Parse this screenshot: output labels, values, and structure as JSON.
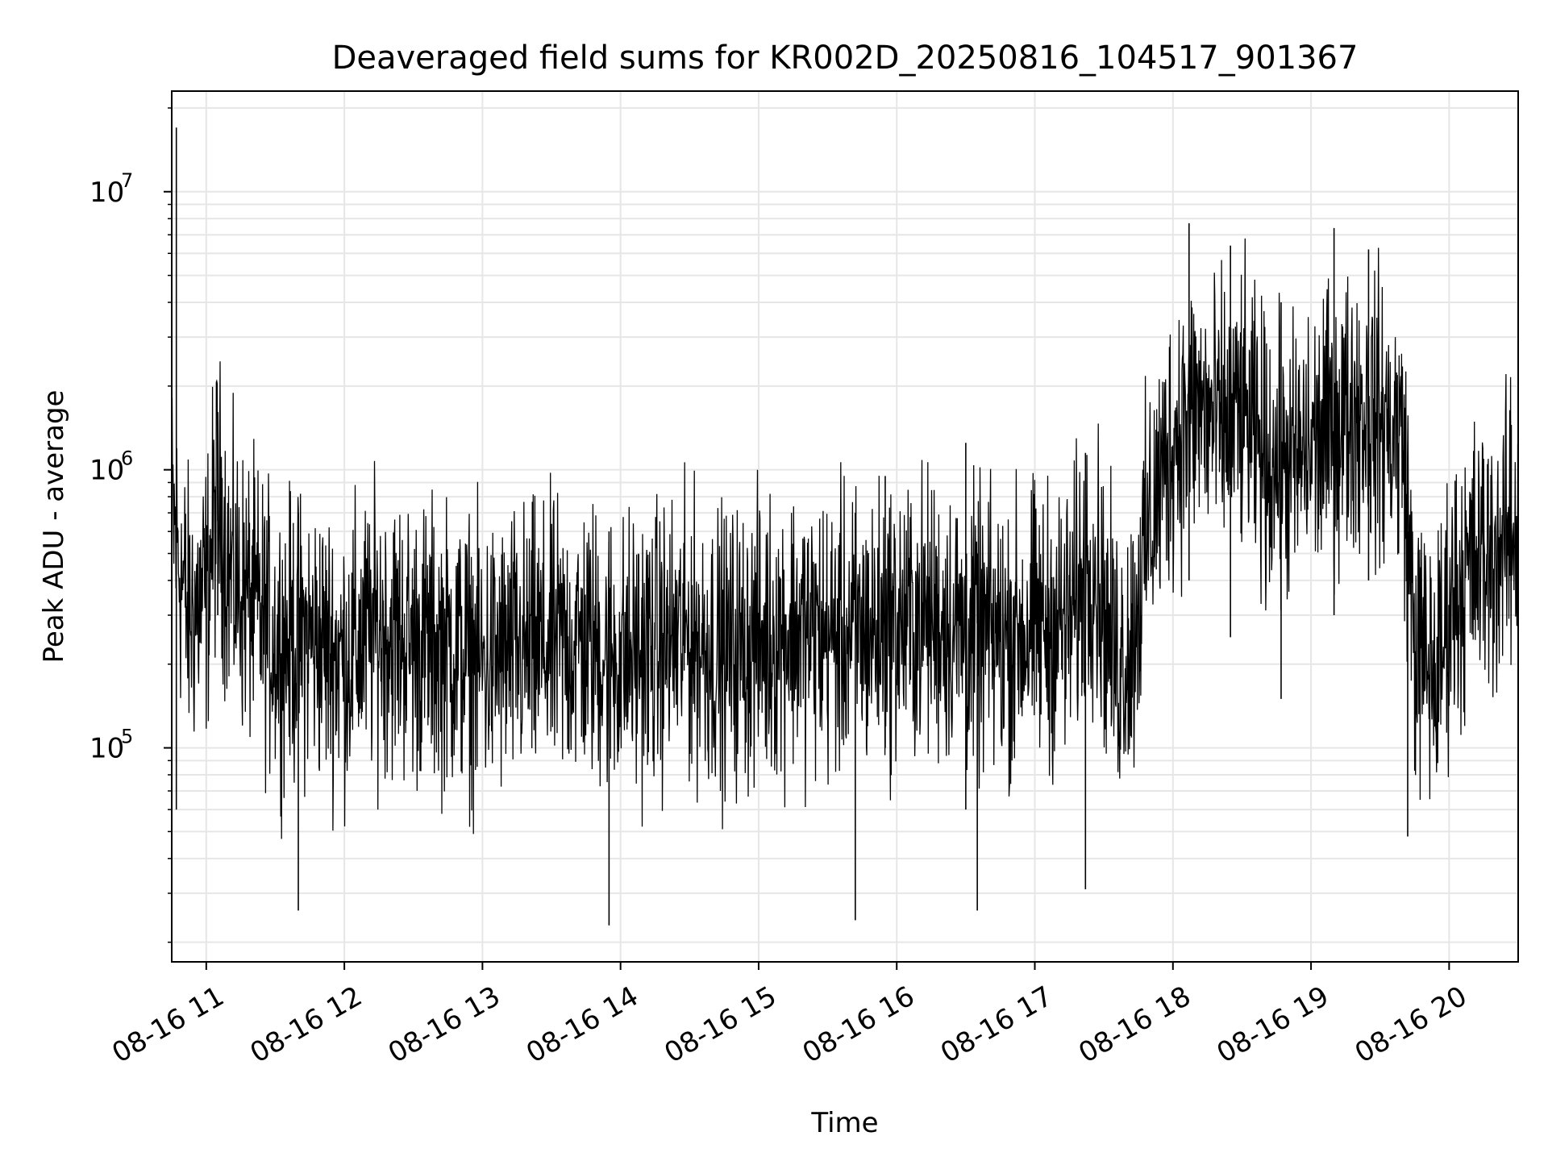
{
  "chart_data": {
    "type": "line",
    "title": "Deaveraged field sums for KR002D_20250816_104517_901367",
    "xlabel": "Time",
    "ylabel": "Peak ADU - average",
    "y_scale": "log",
    "ylim": [
      17000,
      23000000
    ],
    "xlim": [
      "08-16 10:45",
      "08-16 20:30"
    ],
    "grid": true,
    "legend": "none",
    "line_color": "#000000",
    "grid_color": "#e6e6e6",
    "x_ticks": [
      {
        "time": "08-16 11:00",
        "label": "08-16 11"
      },
      {
        "time": "08-16 12:00",
        "label": "08-16 12"
      },
      {
        "time": "08-16 13:00",
        "label": "08-16 13"
      },
      {
        "time": "08-16 14:00",
        "label": "08-16 14"
      },
      {
        "time": "08-16 15:00",
        "label": "08-16 15"
      },
      {
        "time": "08-16 16:00",
        "label": "08-16 16"
      },
      {
        "time": "08-16 17:00",
        "label": "08-16 17"
      },
      {
        "time": "08-16 18:00",
        "label": "08-16 18"
      },
      {
        "time": "08-16 19:00",
        "label": "08-16 19"
      },
      {
        "time": "08-16 20:00",
        "label": "08-16 20"
      }
    ],
    "y_ticks": [
      {
        "value": 100000,
        "base": "10",
        "exp": "5"
      },
      {
        "value": 1000000,
        "base": "10",
        "exp": "6"
      },
      {
        "value": 10000000,
        "base": "10",
        "exp": "7"
      }
    ],
    "series": [
      {
        "x": [
          "08-16 10:45",
          "08-16 10:52",
          "08-16 11:00",
          "08-16 11:05",
          "08-16 11:10",
          "08-16 11:20",
          "08-16 11:30",
          "08-16 11:45",
          "08-16 12:00",
          "08-16 12:15",
          "08-16 12:30",
          "08-16 12:45",
          "08-16 13:00",
          "08-16 13:15",
          "08-16 13:30",
          "08-16 13:45",
          "08-16 14:00",
          "08-16 14:15",
          "08-16 14:30",
          "08-16 14:45",
          "08-16 15:00",
          "08-16 15:15",
          "08-16 15:30",
          "08-16 15:45",
          "08-16 16:00",
          "08-16 16:15",
          "08-16 16:30",
          "08-16 16:45",
          "08-16 17:00",
          "08-16 17:15",
          "08-16 17:25",
          "08-16 17:35",
          "08-16 17:42",
          "08-16 17:50",
          "08-16 18:00",
          "08-16 18:10",
          "08-16 18:20",
          "08-16 18:30",
          "08-16 18:40",
          "08-16 18:50",
          "08-16 19:00",
          "08-16 19:10",
          "08-16 19:20",
          "08-16 19:30",
          "08-16 19:40",
          "08-16 19:45",
          "08-16 19:50",
          "08-16 19:55",
          "08-16 20:00",
          "08-16 20:10",
          "08-16 20:20",
          "08-16 20:30"
        ],
        "values": [
          700000,
          300000,
          350000,
          850000,
          420000,
          330000,
          240000,
          250000,
          210000,
          270000,
          240000,
          230000,
          200000,
          220000,
          230000,
          240000,
          210000,
          230000,
          250000,
          220000,
          240000,
          270000,
          250000,
          260000,
          280000,
          300000,
          260000,
          250000,
          270000,
          280000,
          500000,
          200000,
          240000,
          650000,
          1300000,
          1700000,
          1400000,
          1600000,
          1100000,
          1000000,
          1200000,
          1400000,
          1700000,
          1500000,
          1300000,
          240000,
          200000,
          180000,
          330000,
          450000,
          500000,
          600000
        ],
        "spikes": [
          {
            "x": "08-16 10:47",
            "low": 60000,
            "high": 17000000
          },
          {
            "x": "08-16 11:05",
            "low": 300000,
            "high": 1250000
          },
          {
            "x": "08-16 11:40",
            "low": 26000,
            "high": 700000
          },
          {
            "x": "08-16 13:55",
            "low": 23000,
            "high": 600000
          },
          {
            "x": "08-16 15:42",
            "low": 24000,
            "high": 700000
          },
          {
            "x": "08-16 15:55",
            "low": 100000,
            "high": 950000
          },
          {
            "x": "08-16 16:30",
            "low": 60000,
            "high": 1250000
          },
          {
            "x": "08-16 16:35",
            "low": 26000,
            "high": 500000
          },
          {
            "x": "08-16 17:22",
            "low": 31000,
            "high": 1150000
          },
          {
            "x": "08-16 18:07",
            "low": 400000,
            "high": 7700000
          },
          {
            "x": "08-16 18:25",
            "low": 250000,
            "high": 6400000
          },
          {
            "x": "08-16 18:47",
            "low": 150000,
            "high": 4000000
          },
          {
            "x": "08-16 19:10",
            "low": 300000,
            "high": 7400000
          },
          {
            "x": "08-16 19:25",
            "low": 400000,
            "high": 6200000
          },
          {
            "x": "08-16 19:42",
            "low": 48000,
            "high": 600000
          },
          {
            "x": "08-16 20:27",
            "low": 400000,
            "high": 1450000
          }
        ]
      }
    ]
  }
}
